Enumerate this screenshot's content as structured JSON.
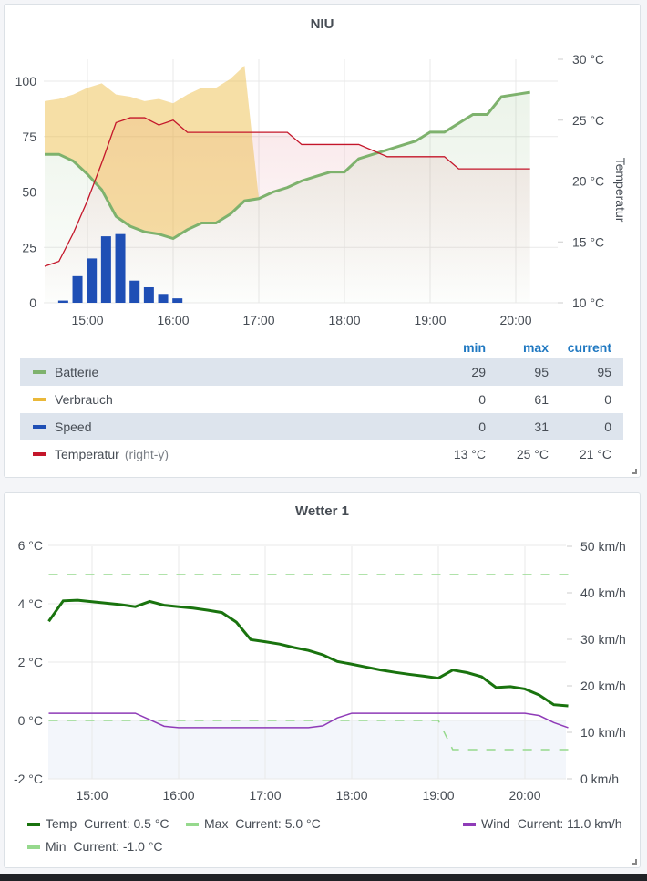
{
  "panels": {
    "niu": {
      "title": "NIU",
      "right_axis_label": "Temperatur",
      "legend_headers": {
        "min": "min",
        "max": "max",
        "current": "current"
      },
      "legend": [
        {
          "name": "Batterie",
          "axis": "",
          "min": "29",
          "max": "95",
          "current": "95",
          "color": "#7eb26d"
        },
        {
          "name": "Verbrauch",
          "axis": "",
          "min": "0",
          "max": "61",
          "current": "0",
          "color": "#eab839"
        },
        {
          "name": "Speed",
          "axis": "",
          "min": "0",
          "max": "31",
          "current": "0",
          "color": "#1f4fb5"
        },
        {
          "name": "Temperatur",
          "axis": "(right-y)",
          "min": "13 °C",
          "max": "25 °C",
          "current": "21 °C",
          "color": "#c4162a"
        }
      ]
    },
    "wetter": {
      "title": "Wetter 1",
      "legend": [
        {
          "name": "Temp",
          "current_label": "Current:",
          "current": "0.5 °C",
          "color": "#19730e"
        },
        {
          "name": "Max",
          "current_label": "Current:",
          "current": "5.0 °C",
          "color": "#96d98d"
        },
        {
          "name": "Wind",
          "current_label": "Current:",
          "current": "11.0 km/h",
          "color": "#8f3bb8"
        },
        {
          "name": "Min",
          "current_label": "Current:",
          "current": "-1.0 °C",
          "color": "#96d98d"
        }
      ]
    }
  },
  "chart_data": [
    {
      "type": "line",
      "title": "NIU",
      "x_ticks": [
        "15:00",
        "16:00",
        "17:00",
        "18:00",
        "19:00",
        "20:00"
      ],
      "y_left": {
        "ticks": [
          "0",
          "25",
          "50",
          "75",
          "100"
        ],
        "range": [
          0,
          100
        ]
      },
      "y_right": {
        "label": "Temperatur",
        "ticks": [
          "10 °C",
          "15 °C",
          "20 °C",
          "25 °C",
          "30 °C"
        ],
        "range": [
          10,
          30
        ]
      },
      "grid": true,
      "series": [
        {
          "name": "Batterie",
          "type": "area-line",
          "axis": "left",
          "color": "#7eb26d",
          "x": [
            "14:30",
            "14:40",
            "14:50",
            "15:00",
            "15:10",
            "15:20",
            "15:30",
            "15:40",
            "15:50",
            "16:00",
            "16:10",
            "16:20",
            "16:30",
            "16:40",
            "16:50",
            "17:00",
            "17:10",
            "17:20",
            "17:30",
            "17:40",
            "17:50",
            "18:00",
            "18:10",
            "18:20",
            "18:30",
            "18:40",
            "18:50",
            "19:00",
            "19:10",
            "19:20",
            "19:30",
            "19:40",
            "19:50",
            "20:00",
            "20:10"
          ],
          "y": [
            67,
            67,
            64,
            58,
            51,
            39,
            34.5,
            32,
            31,
            29,
            33,
            36,
            36,
            40,
            46,
            47,
            50,
            52,
            55,
            57,
            59,
            59,
            65,
            67,
            69,
            71,
            73,
            77,
            77,
            81,
            85,
            85,
            93,
            94,
            95
          ]
        },
        {
          "name": "Verbrauch",
          "type": "stacked-area",
          "axis": "left",
          "stacked_on": "Batterie",
          "color": "#eab839",
          "x": [
            "14:30",
            "14:40",
            "14:50",
            "15:00",
            "15:10",
            "15:20",
            "15:30",
            "15:40",
            "15:50",
            "16:00",
            "16:10",
            "16:20",
            "16:30",
            "16:40",
            "16:50",
            "17:00"
          ],
          "y": [
            24,
            25,
            30,
            39,
            48,
            55,
            58.5,
            59,
            61,
            61,
            61,
            61,
            61,
            61,
            61,
            0
          ]
        },
        {
          "name": "Speed",
          "type": "bar",
          "axis": "left",
          "color": "#1f4fb5",
          "x": [
            "14:43",
            "14:53",
            "15:03",
            "15:13",
            "15:23",
            "15:33",
            "15:43",
            "15:53",
            "16:03"
          ],
          "y": [
            1,
            12,
            20,
            30,
            31,
            10,
            7,
            4,
            2
          ]
        },
        {
          "name": "Temperatur",
          "type": "line",
          "axis": "right",
          "color": "#c4162a",
          "x": [
            "14:30",
            "14:40",
            "14:50",
            "15:00",
            "15:10",
            "15:20",
            "15:30",
            "15:40",
            "15:50",
            "16:00",
            "16:10",
            "17:20",
            "17:30",
            "18:10",
            "18:30",
            "19:10",
            "19:20",
            "20:10"
          ],
          "y": [
            13,
            13.4,
            15.7,
            18.4,
            21.5,
            24.8,
            25.2,
            25.2,
            24.6,
            25,
            24,
            24,
            23,
            23,
            22,
            22,
            21,
            21
          ]
        }
      ]
    },
    {
      "type": "line",
      "title": "Wetter 1",
      "x_ticks": [
        "15:00",
        "16:00",
        "17:00",
        "18:00",
        "19:00",
        "20:00"
      ],
      "y_left": {
        "ticks": [
          "-2 °C",
          "0 °C",
          "2 °C",
          "4 °C",
          "6 °C"
        ],
        "range": [
          -2,
          6
        ]
      },
      "y_right": {
        "ticks": [
          "0 km/h",
          "10 km/h",
          "20 km/h",
          "30 km/h",
          "40 km/h",
          "50 km/h"
        ],
        "range": [
          0,
          50
        ]
      },
      "grid": true,
      "threshold_fill_below": 0,
      "series": [
        {
          "name": "Temp",
          "axis": "left",
          "color": "#19730e",
          "x": [
            "14:30",
            "14:40",
            "14:50",
            "15:00",
            "15:10",
            "15:20",
            "15:30",
            "15:40",
            "15:50",
            "16:00",
            "16:10",
            "16:20",
            "16:30",
            "16:40",
            "16:50",
            "17:00",
            "17:10",
            "17:20",
            "17:30",
            "17:40",
            "17:50",
            "18:00",
            "18:10",
            "18:20",
            "18:30",
            "18:40",
            "18:50",
            "19:00",
            "19:10",
            "19:20",
            "19:30",
            "19:40",
            "19:50",
            "20:00",
            "20:10",
            "20:20",
            "20:30"
          ],
          "y": [
            3.4,
            4.1,
            4.12,
            4.07,
            4.02,
            3.97,
            3.9,
            4.08,
            3.95,
            3.9,
            3.85,
            3.78,
            3.7,
            3.37,
            2.77,
            2.7,
            2.62,
            2.5,
            2.4,
            2.25,
            2.02,
            1.93,
            1.83,
            1.73,
            1.65,
            1.58,
            1.52,
            1.45,
            1.73,
            1.64,
            1.5,
            1.13,
            1.16,
            1.08,
            0.87,
            0.54,
            0.5
          ]
        },
        {
          "name": "Max",
          "axis": "left",
          "color": "#96d98d",
          "dashed": true,
          "x": [
            "14:30",
            "20:30"
          ],
          "y": [
            5,
            5
          ]
        },
        {
          "name": "Min",
          "axis": "left",
          "color": "#96d98d",
          "dashed": true,
          "x": [
            "14:30",
            "19:00",
            "19:10",
            "20:30"
          ],
          "y": [
            0,
            0,
            -1,
            -1
          ]
        },
        {
          "name": "Wind",
          "axis": "right",
          "color": "#8f3bb8",
          "x": [
            "14:30",
            "15:30",
            "15:40",
            "15:50",
            "16:00",
            "17:30",
            "17:40",
            "17:50",
            "18:00",
            "20:00",
            "20:10",
            "20:20",
            "20:30"
          ],
          "y": [
            14.1,
            14.1,
            12.7,
            11.3,
            11,
            11,
            11.4,
            13.1,
            14.1,
            14.1,
            13.6,
            12.1,
            11
          ]
        }
      ]
    }
  ]
}
